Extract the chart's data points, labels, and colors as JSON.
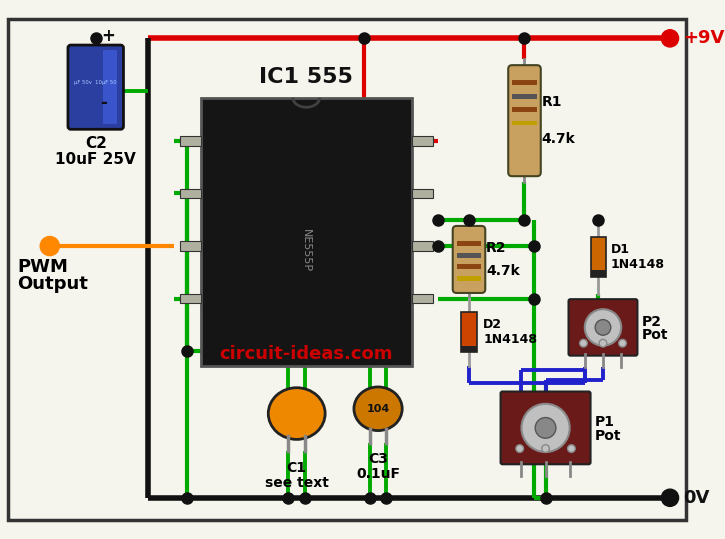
{
  "bg_color": "#f5f5ee",
  "border_color": "#222222",
  "ic_label": "IC1 555",
  "red_wire": "#dd0000",
  "green_wire": "#00aa00",
  "black_wire": "#111111",
  "blue_wire": "#2222cc",
  "orange_wire": "#ff8800",
  "pwm_label_line1": "PWM",
  "pwm_label_line2": "Output",
  "vcc_label": "+9V",
  "gnd_label": "0V",
  "watermark": "circuit-ideas.com",
  "watermark_color": "#cc0000",
  "R1_label_line1": "R1",
  "R1_label_line2": "4.7k",
  "R2_label_line1": "R2",
  "R2_label_line2": "4.7k",
  "D1_label_line1": "D1",
  "D1_label_line2": "1N4148",
  "D2_label_line1": "D2",
  "D2_label_line2": "1N4148",
  "C2_label_line1": "C2",
  "C2_label_line2": "10uF 25V",
  "C1_label_line1": "C1",
  "C1_label_line2": "see text",
  "C3_label_line1": "C3",
  "C3_label_line2": "0.1uF",
  "P1_label_line1": "P1",
  "P1_label_line2": "Pot",
  "P2_label_line1": "P2",
  "P2_label_line2": "Pot"
}
